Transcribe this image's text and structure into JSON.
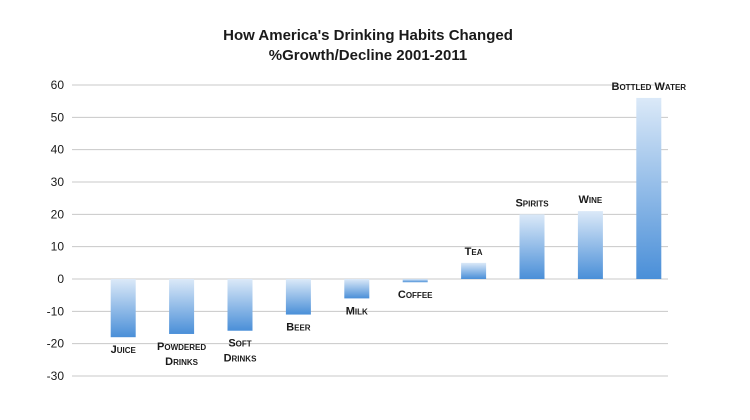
{
  "chart_data": {
    "type": "bar",
    "title": "How America's Drinking Habits Changed",
    "subtitle": "%Growth/Decline 2001-2011",
    "categories": [
      "Juice",
      "Powdered Drinks",
      "Soft Drinks",
      "Beer",
      "Milk",
      "Coffee",
      "Tea",
      "Spirits",
      "Wine",
      "Bottled Water"
    ],
    "category_label_lines": [
      [
        "Juice"
      ],
      [
        "Powdered",
        "Drinks"
      ],
      [
        "Soft",
        "Drinks"
      ],
      [
        "Beer"
      ],
      [
        "Milk"
      ],
      [
        "Coffee"
      ],
      [
        "Tea"
      ],
      [
        "Spirits"
      ],
      [
        "Wine"
      ],
      [
        "Bottled Water"
      ]
    ],
    "values": [
      -18,
      -17,
      -16,
      -11,
      -6,
      -1,
      5,
      20,
      21,
      56
    ],
    "ylim": [
      -30,
      60
    ],
    "yticks": [
      60,
      50,
      40,
      30,
      20,
      10,
      0,
      -10,
      -20,
      -30
    ],
    "xlabel": "",
    "ylabel": "",
    "grid": true,
    "legend": "none",
    "bar_color_light": "#dbe9f8",
    "bar_color_dark": "#4a8fd8"
  }
}
